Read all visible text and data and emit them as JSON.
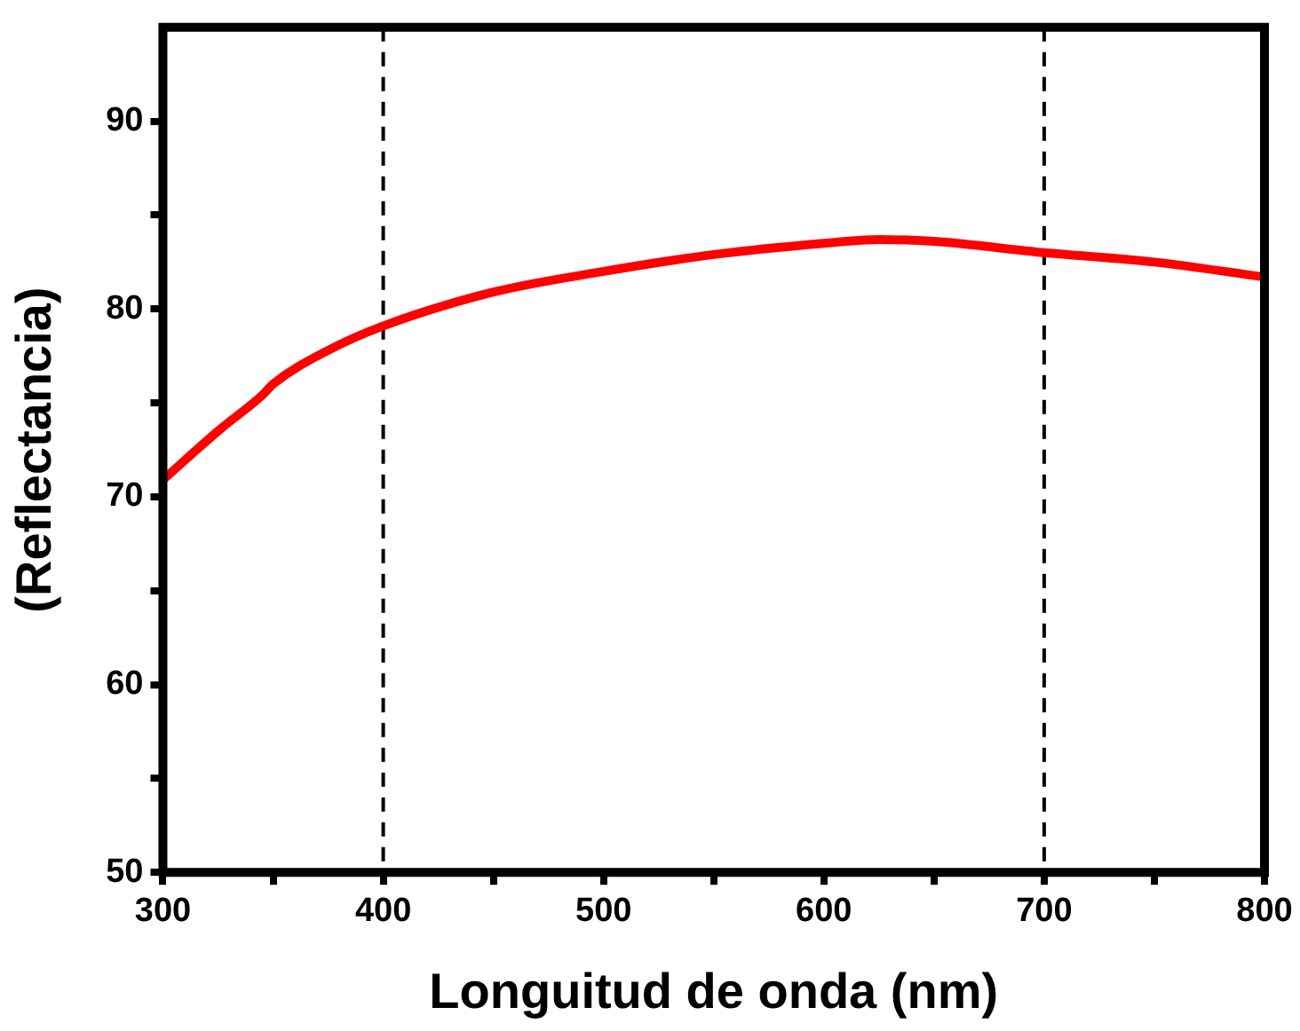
{
  "chart_data": {
    "type": "line",
    "xlabel": "Longuitud de onda (nm)",
    "ylabel": "(Reflectancia)",
    "x": [
      300,
      325,
      345,
      350,
      375,
      400,
      450,
      500,
      550,
      600,
      625,
      650,
      700,
      750,
      800
    ],
    "series": [
      {
        "color": "#ff0000",
        "values": [
          70.9,
          73.5,
          75.4,
          76.0,
          77.8,
          79.1,
          80.9,
          82.0,
          82.9,
          83.5,
          83.7,
          83.6,
          83.0,
          82.5,
          81.7
        ]
      }
    ],
    "xlim": [
      300,
      800
    ],
    "xticks": [
      300,
      {
        "value": 350,
        "label": null
      },
      400,
      {
        "value": 450,
        "label": null
      },
      500,
      {
        "value": 550,
        "label": null
      },
      600,
      {
        "value": 650,
        "label": null
      },
      700,
      {
        "value": 750,
        "label": null
      },
      800
    ],
    "ylim": [
      50,
      95
    ],
    "yticks": [
      50,
      {
        "value": 55,
        "label": null
      },
      60,
      {
        "value": 65,
        "label": null
      },
      70,
      {
        "value": 75,
        "label": null
      },
      80,
      {
        "value": 85,
        "label": null
      },
      90
    ],
    "ref_lines": [
      {
        "axis": "x",
        "value": 400,
        "color": "#000000",
        "line_style": "dashed"
      },
      {
        "axis": "x",
        "value": 700,
        "color": "#000000",
        "line_style": "dashed"
      }
    ],
    "marker": "none",
    "line_style": "solid",
    "legend": false
  }
}
